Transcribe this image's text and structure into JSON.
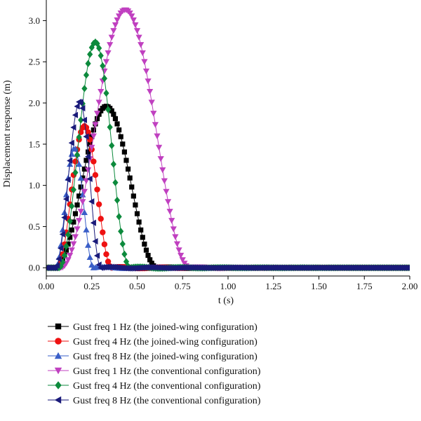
{
  "chart_data": {
    "type": "line",
    "title": "",
    "xlabel": "t (s)",
    "ylabel": "Displacement response (m)",
    "xlim": [
      0,
      2.0
    ],
    "ylim": [
      -0.1,
      3.25
    ],
    "xticks": [
      "0.00",
      "0.25",
      "0.50",
      "0.75",
      "1.00",
      "1.25",
      "1.50",
      "1.75",
      "2.00"
    ],
    "yticks": [
      "0.0",
      "0.5",
      "1.0",
      "1.5",
      "2.0",
      "2.5",
      "3.0"
    ],
    "grid": false,
    "legend_position": "bottom",
    "series": [
      {
        "name": "Gust freq 1 Hz (the joined-wing configuration)",
        "color": "#000000",
        "marker": "square",
        "peak_t": 0.33,
        "peak": 1.96,
        "start_t": 0.05,
        "end_t": 0.61
      },
      {
        "name": "Gust freq 4 Hz (the joined-wing configuration)",
        "color": "#ee1111",
        "marker": "circle",
        "peak_t": 0.21,
        "peak": 1.72,
        "start_t": 0.06,
        "end_t": 0.36
      },
      {
        "name": "Gust freq 8 Hz (the joined-wing configuration)",
        "color": "#3a5fc8",
        "marker": "triangle-up",
        "peak_t": 0.155,
        "peak": 1.45,
        "start_t": 0.05,
        "end_t": 0.26
      },
      {
        "name": "Gust freq 1 Hz (the conventional configuration)",
        "color": "#c040c0",
        "marker": "triangle-down",
        "peak_t": 0.435,
        "peak": 3.13,
        "start_t": 0.08,
        "end_t": 0.79
      },
      {
        "name": "Gust freq 4 Hz (the conventional configuration)",
        "color": "#0c8a3c",
        "marker": "diamond",
        "peak_t": 0.27,
        "peak": 2.74,
        "start_t": 0.07,
        "end_t": 0.46
      },
      {
        "name": "Gust freq 8 Hz (the conventional configuration)",
        "color": "#1a1a7a",
        "marker": "triangle-left",
        "peak_t": 0.185,
        "peak": 2.02,
        "start_t": 0.05,
        "end_t": 0.3
      }
    ],
    "sample_step": 0.01,
    "x_max": 2.0
  }
}
